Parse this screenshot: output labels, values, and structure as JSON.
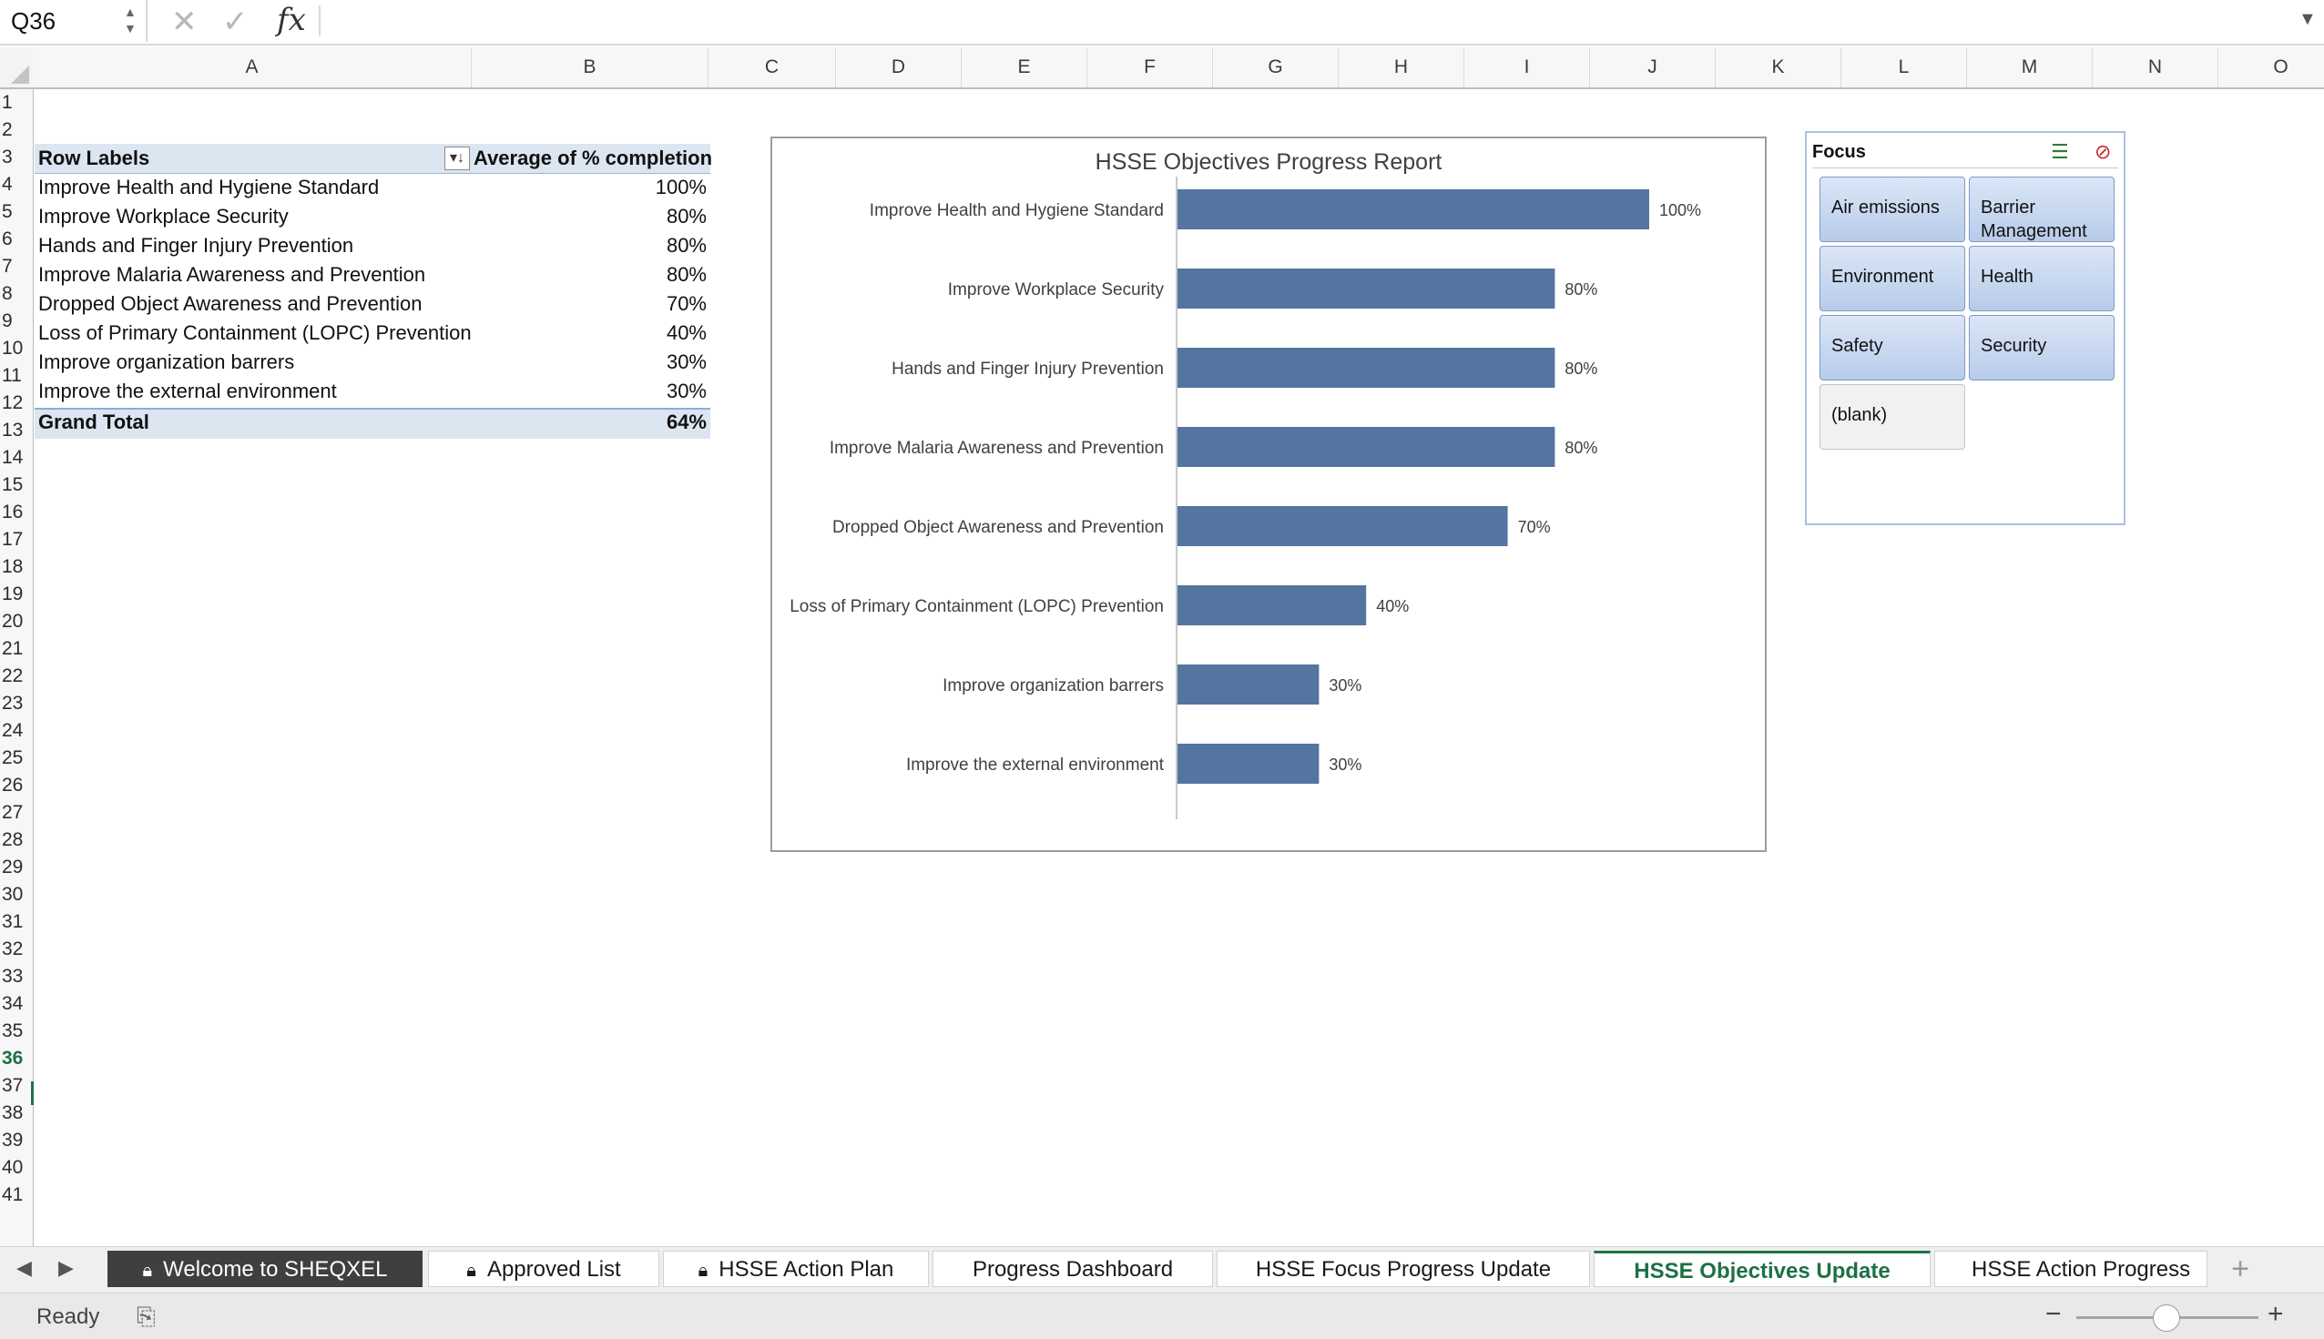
{
  "formula_bar": {
    "name_box": "Q36",
    "cancel_icon": "close-icon",
    "enter_icon": "check-icon",
    "fx_label": "fx",
    "formula": ""
  },
  "grid": {
    "columns": [
      "A",
      "B",
      "C",
      "D",
      "E",
      "F",
      "G",
      "H",
      "I",
      "J",
      "K",
      "L",
      "M",
      "N",
      "O"
    ],
    "rows": [
      "1",
      "2",
      "3",
      "4",
      "5",
      "6",
      "7",
      "8",
      "9",
      "10",
      "11",
      "12",
      "13",
      "14",
      "15",
      "16",
      "17",
      "18",
      "19",
      "20",
      "21",
      "22",
      "23",
      "24",
      "25",
      "26",
      "27",
      "28",
      "29",
      "30",
      "31",
      "32",
      "33",
      "34",
      "35",
      "36",
      "37",
      "38",
      "39",
      "40",
      "41"
    ],
    "active_row": "36"
  },
  "pivot": {
    "header_label": "Row Labels",
    "header_value": "Average of % completion",
    "rows": [
      {
        "label": "Improve Health and Hygiene Standard",
        "value": "100%"
      },
      {
        "label": "Improve Workplace Security",
        "value": "80%"
      },
      {
        "label": "Hands and Finger Injury Prevention",
        "value": "80%"
      },
      {
        "label": "Improve Malaria Awareness and Prevention",
        "value": "80%"
      },
      {
        "label": "Dropped Object Awareness and Prevention",
        "value": "70%"
      },
      {
        "label": "Loss of Primary Containment (LOPC) Prevention",
        "value": "40%"
      },
      {
        "label": "Improve organization barrers",
        "value": "30%"
      },
      {
        "label": "Improve the external environment",
        "value": "30%"
      }
    ],
    "total_label": "Grand Total",
    "total_value": "64%"
  },
  "chart_data": {
    "type": "bar",
    "orientation": "horizontal",
    "title": "HSSE Objectives Progress Report",
    "categories": [
      "Improve Health and Hygiene Standard",
      "Improve Workplace Security",
      "Hands and Finger Injury Prevention",
      "Improve Malaria Awareness and Prevention",
      "Dropped Object Awareness and Prevention",
      "Loss of Primary Containment (LOPC) Prevention",
      "Improve organization barrers",
      "Improve the external environment"
    ],
    "values": [
      1.0,
      0.8,
      0.8,
      0.8,
      0.7,
      0.4,
      0.3,
      0.3
    ],
    "data_labels": [
      "100%",
      "80%",
      "80%",
      "80%",
      "70%",
      "40%",
      "30%",
      "30%"
    ],
    "xlim": [
      0,
      1
    ],
    "grid": false,
    "legend": "none",
    "bar_color": "#5475a0"
  },
  "slicer": {
    "title": "Focus",
    "multiselect_icon": "multi-select-icon",
    "clear_icon": "clear-filter-icon",
    "items": [
      "Air emissions",
      "Barrier Management",
      "Environment",
      "Health",
      "Safety",
      "Security",
      "(blank)"
    ]
  },
  "sheet_tabs": {
    "tabs": [
      {
        "label": "Welcome to SHEQXEL",
        "locked": true
      },
      {
        "label": "Approved List",
        "locked": true
      },
      {
        "label": "HSSE Action Plan",
        "locked": true
      },
      {
        "label": "Progress Dashboard",
        "locked": false
      },
      {
        "label": "HSSE Focus Progress Update",
        "locked": false
      },
      {
        "label": "HSSE Objectives Update",
        "locked": false
      },
      {
        "label": "HSSE Action Progress",
        "locked": false
      }
    ],
    "active": "HSSE Objectives Update",
    "add_label": "+"
  },
  "status_bar": {
    "status": "Ready",
    "zoom_minus": "−",
    "zoom_plus": "+"
  },
  "colors": {
    "accent": "#217346",
    "pivot_band": "#dce6f1",
    "slicer_button": "#b7cbea"
  }
}
